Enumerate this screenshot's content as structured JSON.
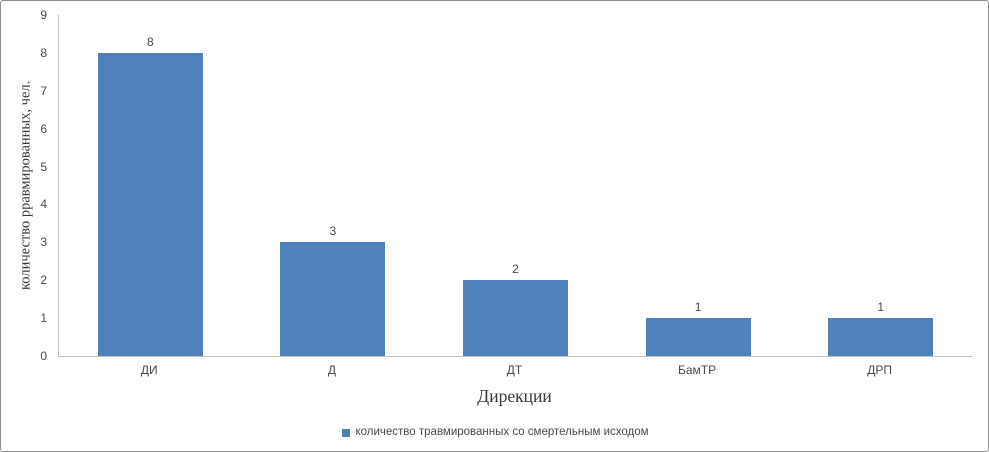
{
  "chart_data": {
    "type": "bar",
    "categories": [
      "ДИ",
      "Д",
      "ДТ",
      "БамТР",
      "ДРП"
    ],
    "values": [
      8,
      3,
      2,
      1,
      1
    ],
    "data_labels": [
      "8",
      "3",
      "2",
      "1",
      "1"
    ],
    "series_name": "количество травмированных со смертельным исходом",
    "title": "",
    "xlabel": "Дирекции",
    "ylabel": "количество рравмированных, чел.",
    "ylim": [
      0,
      9
    ],
    "ytick_step": 1,
    "yticks": [
      0,
      1,
      2,
      3,
      4,
      5,
      6,
      7,
      8,
      9
    ],
    "grid": false,
    "legend_position": "bottom"
  },
  "colors": {
    "bar": "#4F81BD",
    "axis_line": "#C0C0C0",
    "tick_text": "#4A4A4A",
    "title_text": "#383838",
    "frame_border": "#8C8C8C"
  }
}
